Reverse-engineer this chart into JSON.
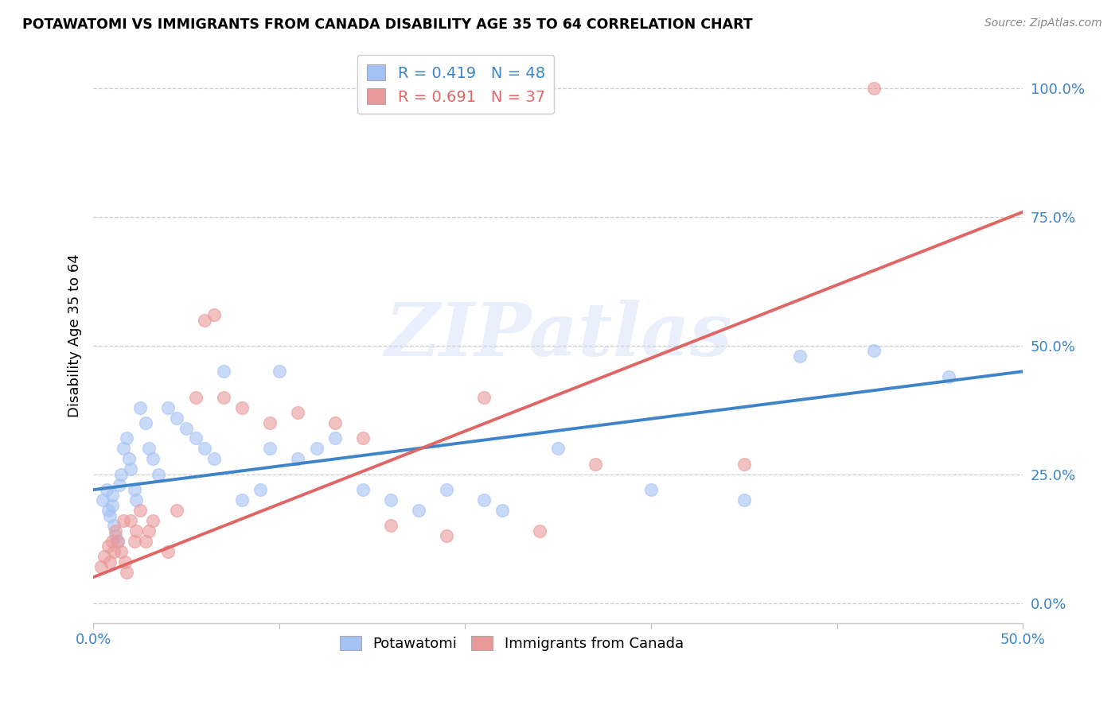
{
  "title": "POTAWATOMI VS IMMIGRANTS FROM CANADA DISABILITY AGE 35 TO 64 CORRELATION CHART",
  "source": "Source: ZipAtlas.com",
  "ylabel_label": "Disability Age 35 to 64",
  "xlim": [
    0.0,
    0.5
  ],
  "ylim": [
    -0.04,
    1.08
  ],
  "blue_R": "0.419",
  "blue_N": "48",
  "pink_R": "0.691",
  "pink_N": "37",
  "blue_color": "#a4c2f4",
  "pink_color": "#ea9999",
  "blue_line_color": "#3d85c8",
  "pink_line_color": "#e06666",
  "tick_label_color": "#3d85c8",
  "watermark_text": "ZIPatlas",
  "potawatomi_x": [
    0.005,
    0.007,
    0.008,
    0.009,
    0.01,
    0.01,
    0.011,
    0.012,
    0.013,
    0.014,
    0.015,
    0.016,
    0.018,
    0.019,
    0.02,
    0.022,
    0.023,
    0.025,
    0.028,
    0.03,
    0.032,
    0.035,
    0.04,
    0.045,
    0.05,
    0.055,
    0.06,
    0.065,
    0.07,
    0.08,
    0.09,
    0.095,
    0.1,
    0.11,
    0.12,
    0.13,
    0.145,
    0.16,
    0.175,
    0.19,
    0.21,
    0.22,
    0.25,
    0.3,
    0.35,
    0.38,
    0.42,
    0.46
  ],
  "potawatomi_y": [
    0.2,
    0.22,
    0.18,
    0.17,
    0.21,
    0.19,
    0.15,
    0.13,
    0.12,
    0.23,
    0.25,
    0.3,
    0.32,
    0.28,
    0.26,
    0.22,
    0.2,
    0.38,
    0.35,
    0.3,
    0.28,
    0.25,
    0.38,
    0.36,
    0.34,
    0.32,
    0.3,
    0.28,
    0.45,
    0.2,
    0.22,
    0.3,
    0.45,
    0.28,
    0.3,
    0.32,
    0.22,
    0.2,
    0.18,
    0.22,
    0.2,
    0.18,
    0.3,
    0.22,
    0.2,
    0.48,
    0.49,
    0.44
  ],
  "canada_x": [
    0.004,
    0.006,
    0.008,
    0.009,
    0.01,
    0.011,
    0.012,
    0.013,
    0.015,
    0.016,
    0.017,
    0.018,
    0.02,
    0.022,
    0.023,
    0.025,
    0.028,
    0.03,
    0.032,
    0.04,
    0.045,
    0.055,
    0.06,
    0.065,
    0.07,
    0.08,
    0.095,
    0.11,
    0.13,
    0.145,
    0.16,
    0.19,
    0.21,
    0.24,
    0.27,
    0.35,
    0.42
  ],
  "canada_y": [
    0.07,
    0.09,
    0.11,
    0.08,
    0.12,
    0.1,
    0.14,
    0.12,
    0.1,
    0.16,
    0.08,
    0.06,
    0.16,
    0.12,
    0.14,
    0.18,
    0.12,
    0.14,
    0.16,
    0.1,
    0.18,
    0.4,
    0.55,
    0.56,
    0.4,
    0.38,
    0.35,
    0.37,
    0.35,
    0.32,
    0.15,
    0.13,
    0.4,
    0.14,
    0.27,
    0.27,
    1.0
  ],
  "blue_line_x0": 0.0,
  "blue_line_x1": 0.5,
  "blue_line_y0": 0.22,
  "blue_line_y1": 0.45,
  "pink_line_x0": 0.0,
  "pink_line_x1": 0.5,
  "pink_line_y0": 0.05,
  "pink_line_y1": 0.76,
  "xtick_positions": [
    0.0,
    0.1,
    0.2,
    0.3,
    0.4,
    0.5
  ],
  "xtick_labels": [
    "0.0%",
    "",
    "",
    "",
    "",
    "50.0%"
  ],
  "ytick_positions": [
    0.0,
    0.25,
    0.5,
    0.75,
    1.0
  ],
  "ytick_labels": [
    "0.0%",
    "25.0%",
    "50.0%",
    "75.0%",
    "100.0%"
  ],
  "legend_blue_label": "R = 0.419   N = 48",
  "legend_pink_label": "R = 0.691   N = 37",
  "bottom_legend_blue": "Potawatomi",
  "bottom_legend_pink": "Immigrants from Canada"
}
